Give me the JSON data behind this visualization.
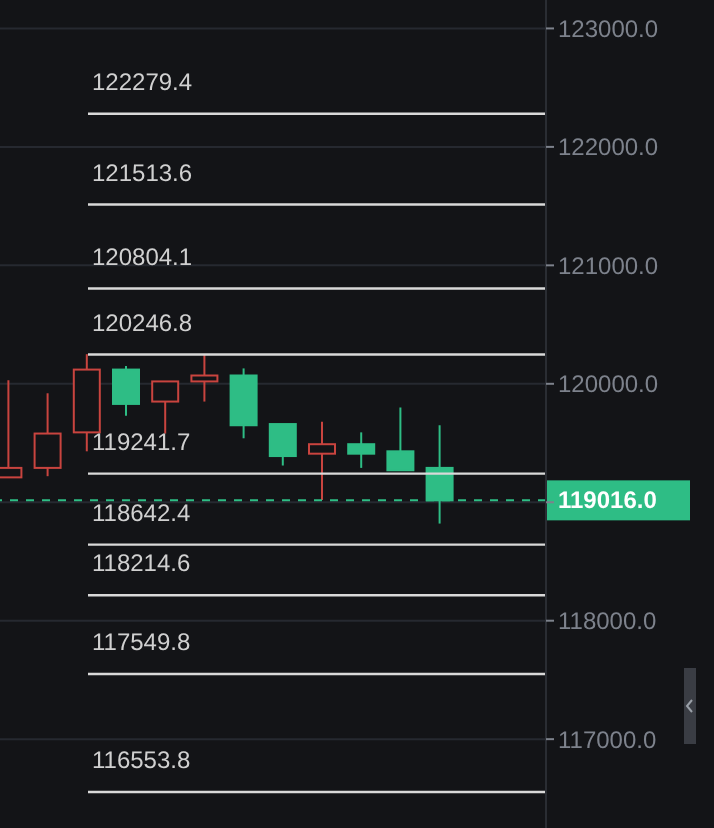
{
  "chart_data": {
    "type": "candlestick",
    "categories": [
      null,
      null,
      null,
      null,
      null,
      null,
      null,
      null,
      null,
      null,
      null,
      null
    ],
    "ohlc": [
      [
        119210,
        120030,
        119210,
        119290
      ],
      [
        119290,
        119920,
        119220,
        119580
      ],
      [
        119590,
        120250,
        119430,
        120120
      ],
      [
        120120,
        120150,
        119730,
        119830
      ],
      [
        119850,
        120020,
        119580,
        120020
      ],
      [
        120020,
        120250,
        119850,
        120070
      ],
      [
        120070,
        120130,
        119540,
        119650
      ],
      [
        119660,
        119660,
        119310,
        119390
      ],
      [
        119410,
        119680,
        119020,
        119490
      ],
      [
        119490,
        119590,
        119290,
        119410
      ],
      [
        119430,
        119800,
        119270,
        119270
      ],
      [
        119290,
        119650,
        118820,
        119016
      ]
    ],
    "colors": [
      "#c9443f",
      "#c9443f",
      "#c9443f",
      "#2ebd85",
      "#c9443f",
      "#c9443f",
      "#2ebd85",
      "#2ebd85",
      "#c9443f",
      "#2ebd85",
      "#2ebd85",
      "#2ebd85"
    ],
    "ylim": [
      116250,
      123240
    ],
    "yticks": [
      {
        "value": 117000,
        "label": "117000.0"
      },
      {
        "value": 118000,
        "label": "118000.0"
      },
      {
        "value": 119000,
        "label": null
      },
      {
        "value": 120000,
        "label": "120000.0"
      },
      {
        "value": 121000,
        "label": "121000.0"
      },
      {
        "value": 122000,
        "label": "122000.0"
      },
      {
        "value": 123000,
        "label": "123000.0"
      }
    ],
    "grid": "y",
    "tick_labels": "y",
    "ref_lines": [
      {
        "axis": "y",
        "value": 122279.4,
        "label": "122279.4",
        "color": "#d9d9d9",
        "line_style": "solid"
      },
      {
        "axis": "y",
        "value": 121513.6,
        "label": "121513.6",
        "color": "#d9d9d9",
        "line_style": "solid"
      },
      {
        "axis": "y",
        "value": 120804.1,
        "label": "120804.1",
        "color": "#d9d9d9",
        "line_style": "solid"
      },
      {
        "axis": "y",
        "value": 120246.8,
        "label": "120246.8",
        "color": "#d9d9d9",
        "line_style": "solid"
      },
      {
        "axis": "y",
        "value": 119241.7,
        "label": "119241.7",
        "color": "#d9d9d9",
        "line_style": "solid"
      },
      {
        "axis": "y",
        "value": 118642.4,
        "label": "118642.4",
        "color": "#d9d9d9",
        "line_style": "solid"
      },
      {
        "axis": "y",
        "value": 118214.6,
        "label": "118214.6",
        "color": "#d9d9d9",
        "line_style": "solid"
      },
      {
        "axis": "y",
        "value": 117549.8,
        "label": "117549.8",
        "color": "#d9d9d9",
        "line_style": "solid"
      },
      {
        "axis": "y",
        "value": 116553.8,
        "label": "116553.8",
        "color": "#d9d9d9",
        "line_style": "solid"
      },
      {
        "axis": "y",
        "value": 119016.0,
        "label": "119016.0",
        "color": "#2ebd85",
        "line_style": "dashed"
      }
    ]
  }
}
